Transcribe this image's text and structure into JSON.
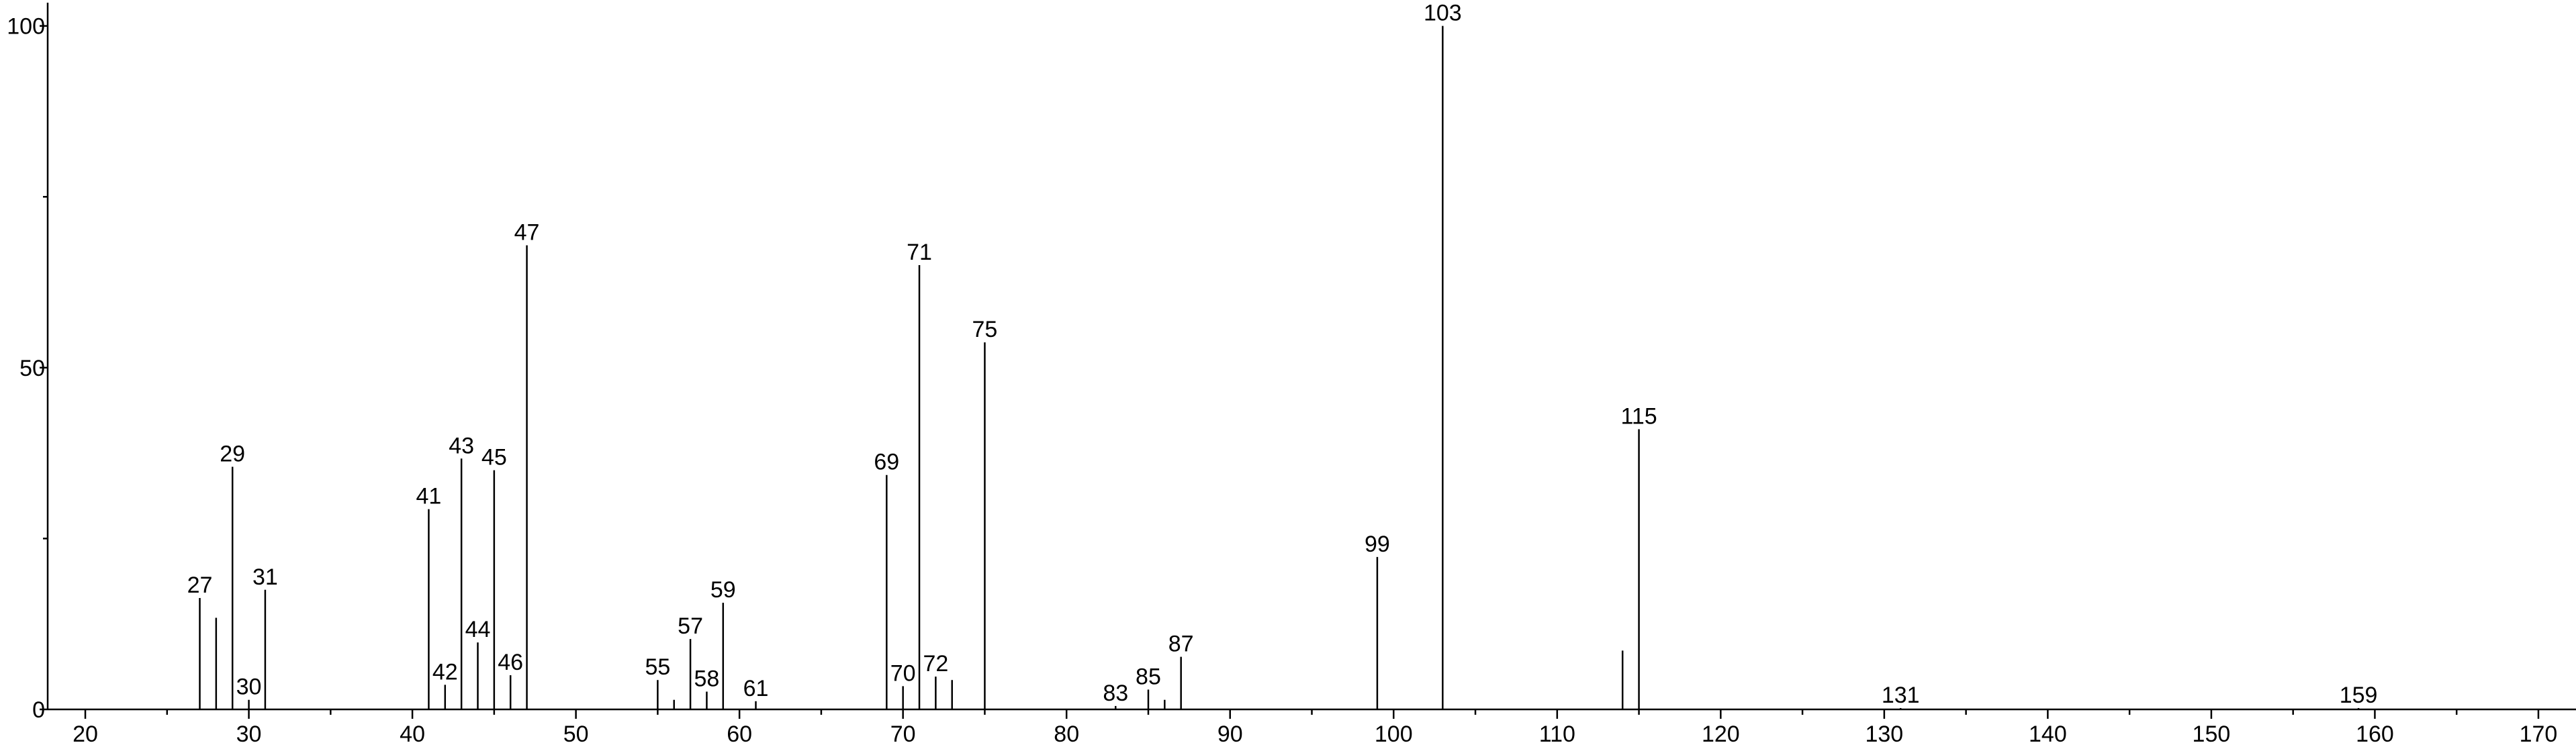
{
  "chart_data": {
    "type": "stem",
    "x": [
      27,
      28,
      29,
      30,
      31,
      41,
      42,
      43,
      44,
      45,
      46,
      47,
      55,
      56,
      57,
      58,
      59,
      61,
      69,
      70,
      71,
      72,
      73,
      75,
      83,
      85,
      86,
      87,
      99,
      103,
      114,
      115,
      131,
      159
    ],
    "values": [
      16.3,
      13.4,
      35.5,
      1.4,
      17.5,
      29.3,
      3.6,
      36.7,
      9.8,
      35,
      5,
      67.9,
      4.3,
      1.4,
      10.3,
      2.6,
      15.6,
      1.2,
      34.3,
      3.4,
      65,
      4.8,
      4.3,
      53.7,
      0.5,
      2.9,
      1.4,
      7.7,
      22.3,
      100,
      8.6,
      41,
      0.2,
      0.2
    ],
    "show_label": [
      true,
      false,
      true,
      true,
      true,
      true,
      true,
      true,
      true,
      true,
      true,
      true,
      true,
      false,
      true,
      true,
      true,
      true,
      true,
      true,
      true,
      true,
      false,
      true,
      true,
      true,
      false,
      true,
      true,
      true,
      false,
      true,
      true,
      true
    ],
    "color": "#000000",
    "xlim": [
      17.7,
      172.3
    ],
    "ylim": [
      0,
      103.4
    ],
    "xticks": [
      20,
      30,
      40,
      50,
      60,
      70,
      80,
      90,
      100,
      110,
      120,
      130,
      140,
      150,
      160,
      170
    ],
    "xminorticks": [
      25,
      35,
      45,
      55,
      65,
      75,
      85,
      95,
      105,
      115,
      125,
      135,
      145,
      155,
      165
    ],
    "yticks": [
      0,
      50,
      100
    ],
    "yminorticks": [
      25,
      75
    ]
  }
}
